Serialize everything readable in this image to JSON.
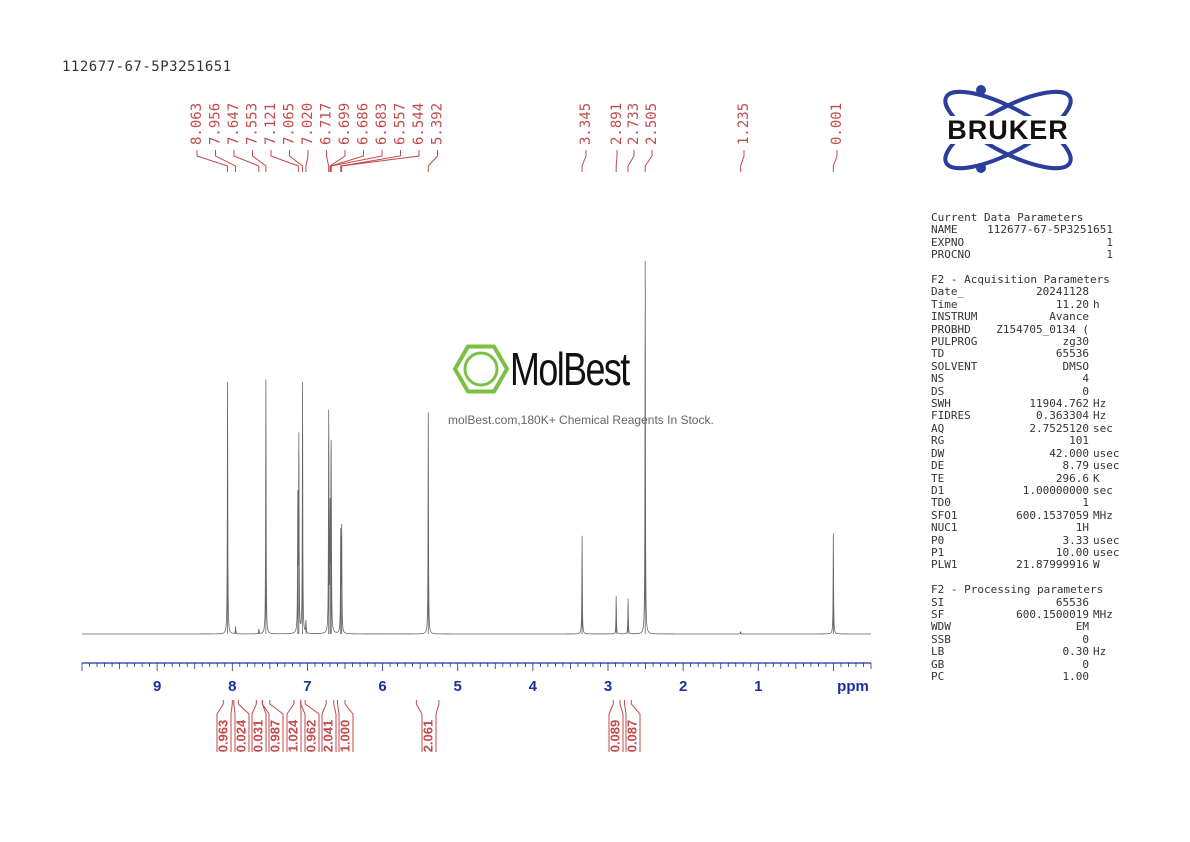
{
  "sample_title": "112677-67-5P3251651",
  "brand": {
    "logo_text": "BRUKER",
    "accent": "#2b3e9b"
  },
  "watermark": {
    "name": "MolBest",
    "subtitle": "molBest.com,180K+ Chemical Reagents In Stock.",
    "accent": "#7ac143"
  },
  "colors": {
    "peak_label": "#c24a4a",
    "axis": "#1a2fa0",
    "spectrum": "#666666"
  },
  "parameters": {
    "current_header": "Current Data Parameters",
    "current": [
      {
        "label": "NAME",
        "value": "112677-67-5P3251651",
        "unit": ""
      },
      {
        "label": "EXPNO",
        "value": "1",
        "unit": ""
      },
      {
        "label": "PROCNO",
        "value": "1",
        "unit": ""
      }
    ],
    "acq_header": "F2 - Acquisition Parameters",
    "acq": [
      {
        "label": "Date_",
        "value": "20241128",
        "unit": ""
      },
      {
        "label": "Time",
        "value": "11.20",
        "unit": "h"
      },
      {
        "label": "INSTRUM",
        "value": "Avance",
        "unit": ""
      },
      {
        "label": "PROBHD",
        "value": "Z154705_0134 (",
        "unit": ""
      },
      {
        "label": "PULPROG",
        "value": "zg30",
        "unit": ""
      },
      {
        "label": "TD",
        "value": "65536",
        "unit": ""
      },
      {
        "label": "SOLVENT",
        "value": "DMSO",
        "unit": ""
      },
      {
        "label": "NS",
        "value": "4",
        "unit": ""
      },
      {
        "label": "DS",
        "value": "0",
        "unit": ""
      },
      {
        "label": "SWH",
        "value": "11904.762",
        "unit": "Hz"
      },
      {
        "label": "FIDRES",
        "value": "0.363304",
        "unit": "Hz"
      },
      {
        "label": "AQ",
        "value": "2.7525120",
        "unit": "sec"
      },
      {
        "label": "RG",
        "value": "101",
        "unit": ""
      },
      {
        "label": "DW",
        "value": "42.000",
        "unit": "usec"
      },
      {
        "label": "DE",
        "value": "8.79",
        "unit": "usec"
      },
      {
        "label": "TE",
        "value": "296.6",
        "unit": "K"
      },
      {
        "label": "D1",
        "value": "1.00000000",
        "unit": "sec"
      },
      {
        "label": "TD0",
        "value": "1",
        "unit": ""
      },
      {
        "label": "SFO1",
        "value": "600.1537059",
        "unit": "MHz"
      },
      {
        "label": "NUC1",
        "value": "1H",
        "unit": ""
      },
      {
        "label": "P0",
        "value": "3.33",
        "unit": "usec"
      },
      {
        "label": "P1",
        "value": "10.00",
        "unit": "usec"
      },
      {
        "label": "PLW1",
        "value": "21.87999916",
        "unit": "W"
      }
    ],
    "proc_header": "F2 - Processing parameters",
    "proc": [
      {
        "label": "SI",
        "value": "65536",
        "unit": ""
      },
      {
        "label": "SF",
        "value": "600.1500019",
        "unit": "MHz"
      },
      {
        "label": "WDW",
        "value": "EM",
        "unit": ""
      },
      {
        "label": "SSB",
        "value": "0",
        "unit": ""
      },
      {
        "label": "LB",
        "value": "0.30",
        "unit": "Hz"
      },
      {
        "label": "GB",
        "value": "0",
        "unit": ""
      },
      {
        "label": "PC",
        "value": "1.00",
        "unit": ""
      }
    ]
  },
  "chart_data": {
    "type": "line",
    "xlabel": "ppm",
    "xlim": [
      10.0,
      -0.5
    ],
    "x_reversed": true,
    "ticks": [
      9,
      8,
      7,
      6,
      5,
      4,
      3,
      2,
      1
    ],
    "peak_labels": [
      "8.063",
      "7.956",
      "7.647",
      "7.553",
      "7.121",
      "7.065",
      "7.020",
      "6.717",
      "6.699",
      "6.686",
      "6.683",
      "6.557",
      "6.544",
      "5.392",
      "3.345",
      "2.891",
      "2.733",
      "2.505",
      "1.235",
      "0.001"
    ],
    "peaks": [
      {
        "ppm": 8.063,
        "height": 1.0
      },
      {
        "ppm": 7.956,
        "height": 0.03
      },
      {
        "ppm": 7.647,
        "height": 0.02
      },
      {
        "ppm": 7.553,
        "height": 1.01
      },
      {
        "ppm": 7.128,
        "height": 0.55
      },
      {
        "ppm": 7.114,
        "height": 0.8
      },
      {
        "ppm": 7.065,
        "height": 1.0
      },
      {
        "ppm": 7.02,
        "height": 0.05
      },
      {
        "ppm": 6.717,
        "height": 0.89
      },
      {
        "ppm": 6.699,
        "height": 0.47
      },
      {
        "ppm": 6.686,
        "height": 0.46
      },
      {
        "ppm": 6.683,
        "height": 0.43
      },
      {
        "ppm": 6.557,
        "height": 0.42
      },
      {
        "ppm": 6.544,
        "height": 0.41
      },
      {
        "ppm": 5.392,
        "height": 0.88
      },
      {
        "ppm": 3.345,
        "height": 0.39
      },
      {
        "ppm": 2.891,
        "height": 0.15
      },
      {
        "ppm": 2.733,
        "height": 0.14
      },
      {
        "ppm": 2.505,
        "height": 1.48
      },
      {
        "ppm": 1.235,
        "height": 0.01
      },
      {
        "ppm": 0.001,
        "height": 0.4
      }
    ],
    "integrals": [
      {
        "from": 8.12,
        "to": 8.0,
        "value": "0.963"
      },
      {
        "from": 7.98,
        "to": 7.92,
        "value": "0.024"
      },
      {
        "from": 7.68,
        "to": 7.6,
        "value": "0.031"
      },
      {
        "from": 7.6,
        "to": 7.5,
        "value": "0.987"
      },
      {
        "from": 7.18,
        "to": 7.09,
        "value": "1.024"
      },
      {
        "from": 7.09,
        "to": 7.03,
        "value": "0.962"
      },
      {
        "from": 6.75,
        "to": 6.65,
        "value": "2.041"
      },
      {
        "from": 6.6,
        "to": 6.5,
        "value": "1.000"
      },
      {
        "from": 5.55,
        "to": 5.25,
        "value": "2.061"
      },
      {
        "from": 2.93,
        "to": 2.84,
        "value": "0.089"
      },
      {
        "from": 2.78,
        "to": 2.69,
        "value": "0.087"
      }
    ]
  }
}
